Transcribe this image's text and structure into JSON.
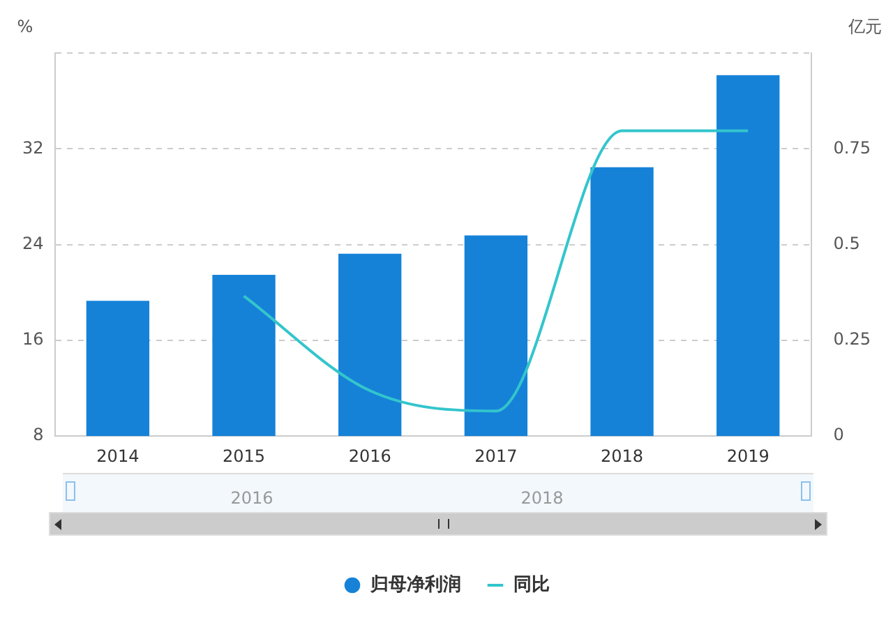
{
  "chart_data": {
    "type": "bar",
    "ylabel": "%",
    "y2label": "亿元",
    "categories": [
      "2014",
      "2015",
      "2016",
      "2017",
      "2018",
      "2019"
    ],
    "series": [
      {
        "name": "归母净利润",
        "axis": "y2",
        "color": "#1582d8",
        "values": [
          0.353,
          0.421,
          0.476,
          0.524,
          0.702,
          0.942
        ]
      },
      {
        "name": "同比",
        "type": "line",
        "axis": "y",
        "color": "#33c5cc",
        "values": [
          null,
          19.7,
          11.8,
          10.1,
          33.5,
          33.5
        ]
      }
    ],
    "ylim": [
      8,
      40
    ],
    "yticks": [
      8,
      16,
      24,
      32,
      {
        "value": 40,
        "label": null
      }
    ],
    "y2lim": [
      0,
      1
    ],
    "y2ticks": [
      0,
      0.25,
      0.5,
      0.75
    ],
    "grid": "y",
    "legend": "bottom",
    "marker": "none",
    "line_style": "solid",
    "annotations": [
      "2016",
      "2018"
    ]
  }
}
